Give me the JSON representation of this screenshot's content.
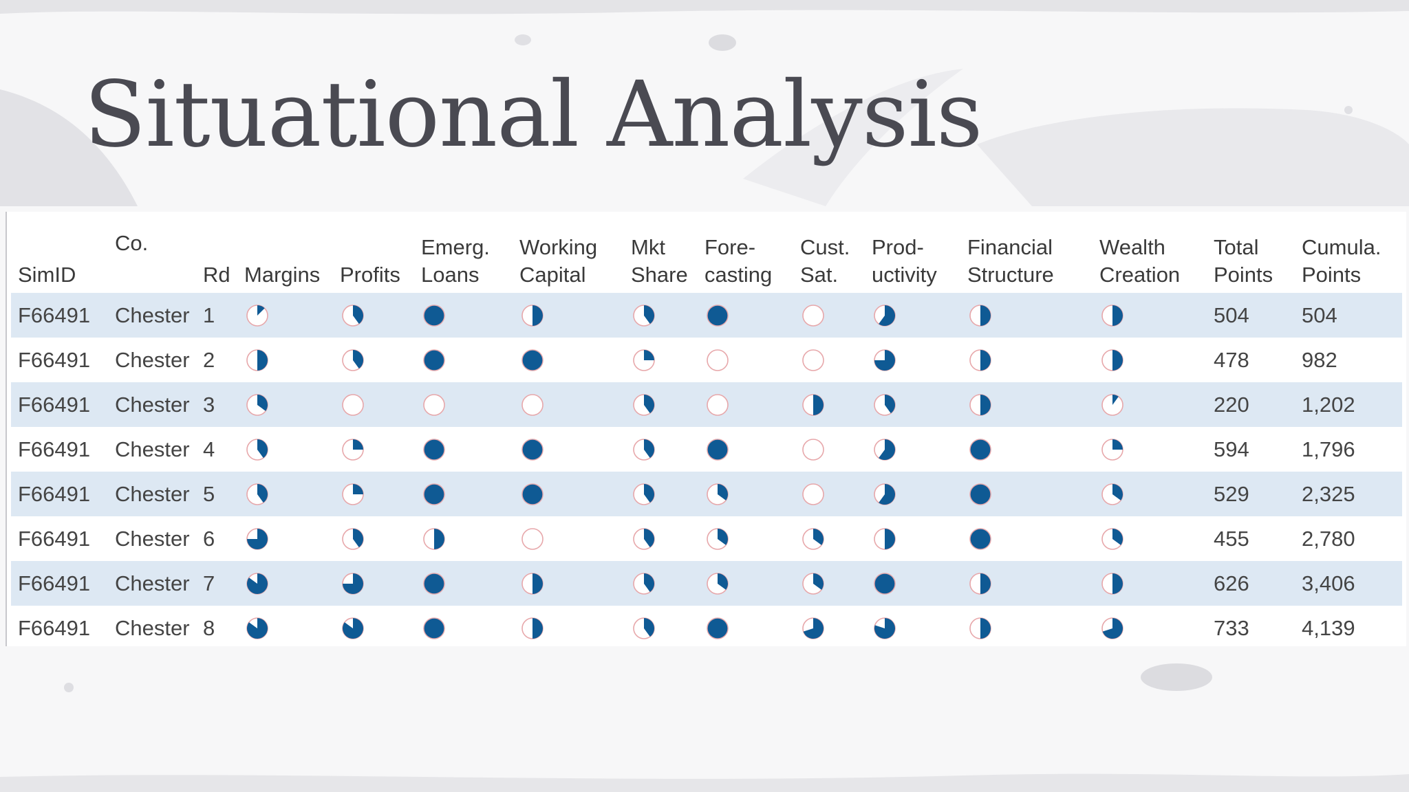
{
  "title": "Situational Analysis",
  "colors": {
    "fill": "#0f5a94",
    "ring": "#e7a7aa",
    "band": "#dde8f3"
  },
  "table": {
    "headers": [
      [
        "SimID"
      ],
      [
        "Co."
      ],
      [
        "Rd"
      ],
      [
        "Margins"
      ],
      [
        "Profits"
      ],
      [
        "Emerg.",
        "Loans"
      ],
      [
        "Working",
        "Capital"
      ],
      [
        "Mkt",
        "Share"
      ],
      [
        "Fore-",
        "casting"
      ],
      [
        "Cust.",
        "Sat."
      ],
      [
        "Prod-",
        "uctivity"
      ],
      [
        "Financial",
        "Structure"
      ],
      [
        "Wealth",
        "Creation"
      ],
      [
        "Total",
        "Points"
      ],
      [
        "Cumula.",
        "Points"
      ]
    ],
    "rows": [
      {
        "simid": "F66491",
        "co": "Chester",
        "rd": "1",
        "ratings": [
          0.125,
          0.4,
          1,
          0.5,
          0.4,
          1,
          0,
          0.6,
          0.5,
          0.5
        ],
        "total": "504",
        "cumulative": "504"
      },
      {
        "simid": "F66491",
        "co": "Chester",
        "rd": "2",
        "ratings": [
          0.5,
          0.4,
          1,
          1,
          0.25,
          0,
          0,
          0.75,
          0.5,
          0.5
        ],
        "total": "478",
        "cumulative": "982"
      },
      {
        "simid": "F66491",
        "co": "Chester",
        "rd": "3",
        "ratings": [
          0.35,
          0,
          0,
          0,
          0.4,
          0,
          0.5,
          0.4,
          0.5,
          0.1
        ],
        "total": "220",
        "cumulative": "1,202"
      },
      {
        "simid": "F66491",
        "co": "Chester",
        "rd": "4",
        "ratings": [
          0.4,
          0.25,
          1,
          1,
          0.4,
          1,
          0,
          0.6,
          1,
          0.25
        ],
        "total": "594",
        "cumulative": "1,796"
      },
      {
        "simid": "F66491",
        "co": "Chester",
        "rd": "5",
        "ratings": [
          0.4,
          0.25,
          1,
          1,
          0.4,
          0.35,
          0,
          0.6,
          1,
          0.35
        ],
        "total": "529",
        "cumulative": "2,325"
      },
      {
        "simid": "F66491",
        "co": "Chester",
        "rd": "6",
        "ratings": [
          0.75,
          0.4,
          0.5,
          0,
          0.4,
          0.35,
          0.35,
          0.5,
          1,
          0.35
        ],
        "total": "455",
        "cumulative": "2,780"
      },
      {
        "simid": "F66491",
        "co": "Chester",
        "rd": "7",
        "ratings": [
          0.85,
          0.75,
          1,
          0.5,
          0.4,
          0.35,
          0.35,
          1,
          0.5,
          0.5
        ],
        "total": "626",
        "cumulative": "3,406"
      },
      {
        "simid": "F66491",
        "co": "Chester",
        "rd": "8",
        "ratings": [
          0.85,
          0.85,
          1,
          0.5,
          0.4,
          1,
          0.7,
          0.8,
          0.5,
          0.7
        ],
        "total": "733",
        "cumulative": "4,139"
      }
    ]
  }
}
